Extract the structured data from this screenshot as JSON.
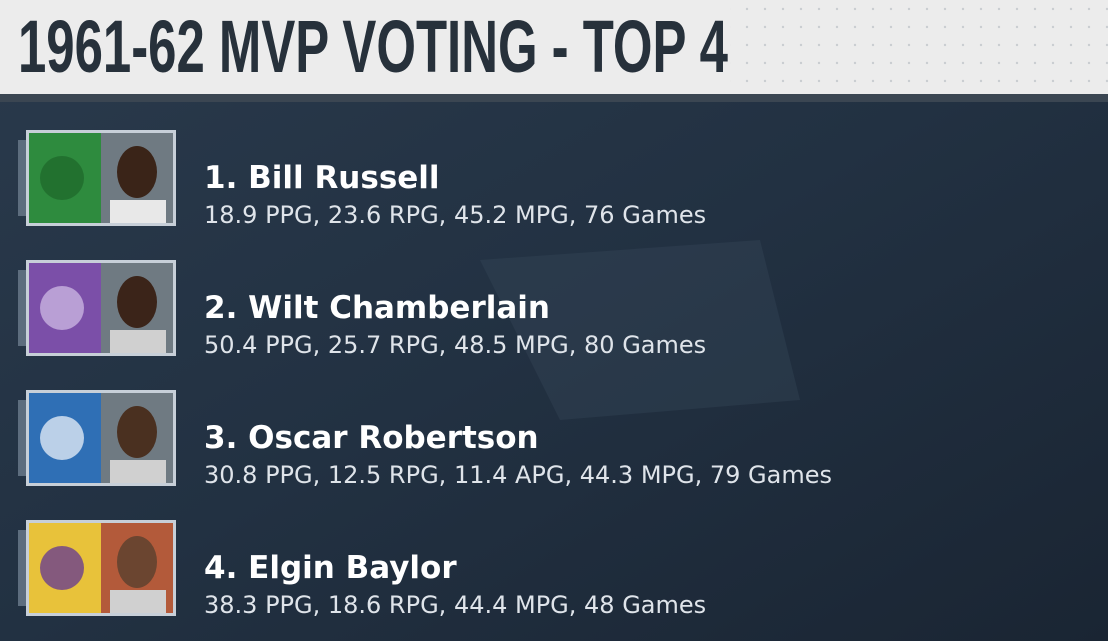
{
  "header": {
    "title": "1961-62 MVP VOTING - TOP 4"
  },
  "entries": [
    {
      "name": "1. Bill Russell",
      "stats": "18.9 PPG,  23.6 RPG,  45.2 MPG,  76 Games"
    },
    {
      "name": "2. Wilt Chamberlain",
      "stats": "50.4 PPG,  25.7 RPG,  48.5 MPG,  80 Games"
    },
    {
      "name": "3. Oscar Robertson",
      "stats": "30.8 PPG,  12.5 RPG,  11.4 APG,  44.3 MPG,  79 Games"
    },
    {
      "name": "4. Elgin Baylor",
      "stats": "38.3 PPG,  18.6 RPG,  44.4 MPG,  48 Games"
    }
  ]
}
